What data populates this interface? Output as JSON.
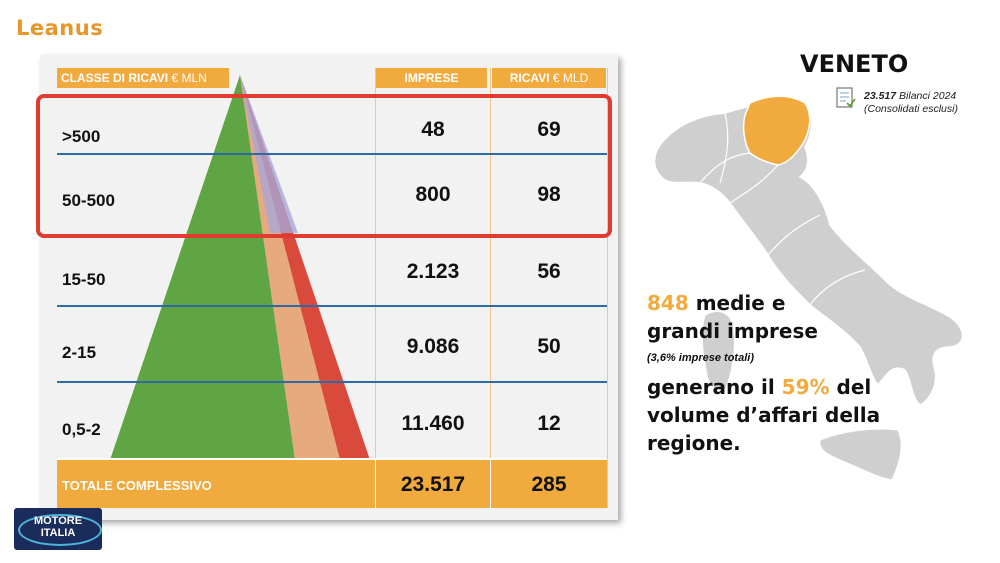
{
  "brand": {
    "name": "Leanus"
  },
  "table": {
    "header_class": "CLASSE DI RICAVI",
    "header_class_unit": "€ MLN",
    "header_imprese": "IMPRESE",
    "header_ricavi": "RICAVI",
    "header_ricavi_unit": "€ MLD",
    "rows": [
      {
        "label": ">500",
        "imprese": "48",
        "ricavi": "69"
      },
      {
        "label": "50-500",
        "imprese": "800",
        "ricavi": "98"
      },
      {
        "label": "15-50",
        "imprese": "2.123",
        "ricavi": "56"
      },
      {
        "label": "2-15",
        "imprese": "9.086",
        "ricavi": "50"
      },
      {
        "label": "0,5-2",
        "imprese": "11.460",
        "ricavi": "12"
      }
    ],
    "total_label": "TOTALE COMPLESSIVO",
    "total_imprese": "23.517",
    "total_ricavi": "285"
  },
  "region": {
    "title": "VENETO",
    "bilanci_count": "23.517",
    "bilanci_text": "Bilanci 2024",
    "bilanci_note": "(Consolidati esclusi)"
  },
  "summary": {
    "count": "848",
    "line1_rest": " medie e",
    "line2": "grandi imprese",
    "sub": "(3,6% imprese totali)",
    "line3_pre": "generano il ",
    "percent": "59%",
    "line3_post": " del",
    "line4": "volume d’affari della",
    "line5": "regione."
  },
  "footer_logo": {
    "line1": "MOTORE",
    "line2": "ITALIA"
  },
  "colors": {
    "accent": "#f1aa3d",
    "highlight": "#e13a2e",
    "map_gray": "#cfcfcf",
    "pyramid_green": "#5fa544"
  }
}
